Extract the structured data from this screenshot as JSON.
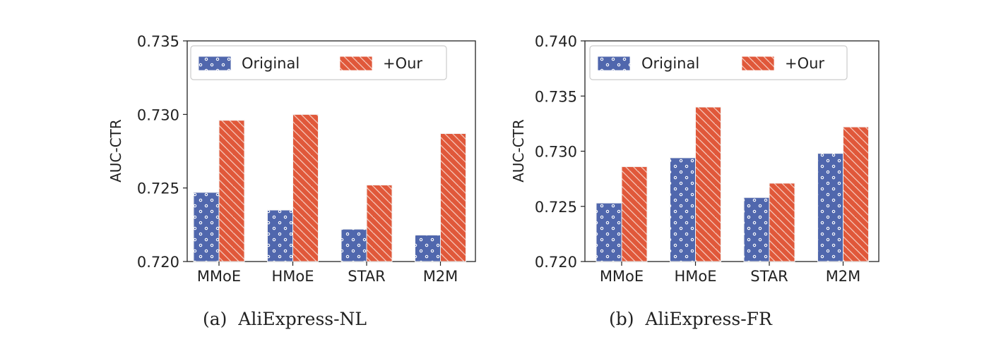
{
  "colors": {
    "original": "#5067ad",
    "ours": "#e0583a",
    "axis": "#222222"
  },
  "chart_data": [
    {
      "type": "bar",
      "caption": "(a)  AliExpress-NL",
      "ylabel": "AUC-CTR",
      "ylim": [
        0.72,
        0.735
      ],
      "yticks": [
        0.72,
        0.725,
        0.73,
        0.735
      ],
      "ytick_labels": [
        "0.720",
        "0.725",
        "0.730",
        "0.735"
      ],
      "categories": [
        "MMoE",
        "HMoE",
        "STAR",
        "M2M"
      ],
      "legend_position": "top-left",
      "series": [
        {
          "name": "Original",
          "pattern": "dots",
          "values": [
            0.7247,
            0.7235,
            0.7222,
            0.7218
          ]
        },
        {
          "name": "+Our",
          "pattern": "hatch",
          "values": [
            0.7296,
            0.73,
            0.7252,
            0.7287
          ]
        }
      ]
    },
    {
      "type": "bar",
      "caption": "(b)  AliExpress-FR",
      "ylabel": "AUC-CTR",
      "ylim": [
        0.72,
        0.74
      ],
      "yticks": [
        0.72,
        0.725,
        0.73,
        0.735,
        0.74
      ],
      "ytick_labels": [
        "0.720",
        "0.725",
        "0.730",
        "0.735",
        "0.740"
      ],
      "categories": [
        "MMoE",
        "HMoE",
        "STAR",
        "M2M"
      ],
      "legend_position": "top-left",
      "series": [
        {
          "name": "Original",
          "pattern": "dots",
          "values": [
            0.7253,
            0.7294,
            0.7258,
            0.7298
          ]
        },
        {
          "name": "+Our",
          "pattern": "hatch",
          "values": [
            0.7286,
            0.734,
            0.7271,
            0.7322
          ]
        }
      ]
    }
  ]
}
